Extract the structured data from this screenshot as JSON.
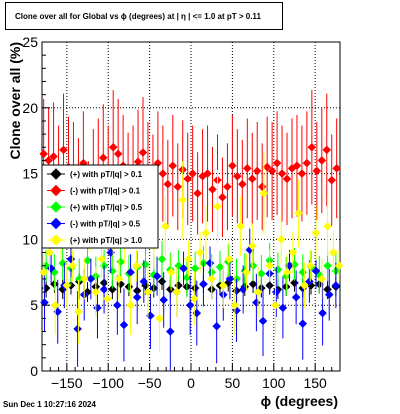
{
  "title": "Clone  over all for Global vs ϕ  (degrees) at |  η  | <= 1.0 at pT > 0.11",
  "timestamp": "Sun Dec  1 10:27:16 2024",
  "chart_data": {
    "type": "scatter",
    "xlabel": "ϕ  (degrees)",
    "ylabel": "Clone  over all (%)",
    "xlim": [
      -180,
      180
    ],
    "ylim": [
      0,
      25
    ],
    "xticks": [
      -150,
      -100,
      -50,
      0,
      50,
      100,
      150
    ],
    "yticks": [
      0,
      5,
      10,
      15,
      20,
      25
    ],
    "grid": true,
    "legend_position": "left-middle",
    "series": [
      {
        "name": "(+) with pT/|q| > 0.1",
        "color": "#000000",
        "marker": "diamond",
        "x": [
          -175,
          -165,
          -155,
          -145,
          -135,
          -125,
          -115,
          -105,
          -95,
          -85,
          -75,
          -65,
          -55,
          -45,
          -35,
          -25,
          -15,
          -5,
          5,
          15,
          25,
          35,
          45,
          55,
          65,
          75,
          85,
          95,
          105,
          115,
          125,
          135,
          145,
          155,
          165,
          175
        ],
        "y": [
          6.3,
          6.6,
          6.2,
          6.5,
          6.8,
          6.0,
          6.4,
          6.7,
          6.2,
          6.6,
          6.4,
          6.1,
          6.5,
          6.3,
          6.8,
          6.2,
          6.5,
          6.4,
          6.3,
          6.6,
          6.2,
          6.5,
          6.7,
          6.1,
          6.4,
          6.6,
          6.3,
          6.5,
          6.2,
          6.4,
          6.7,
          6.3,
          6.5,
          6.6,
          6.2,
          6.4
        ]
      },
      {
        "name": "(-) with pT/|q| > 0.1",
        "color": "#ff0000",
        "marker": "diamond",
        "x": [
          -178,
          -172,
          -166,
          -160,
          -154,
          -148,
          -142,
          -136,
          -130,
          -124,
          -118,
          -112,
          -106,
          -100,
          -94,
          -88,
          -82,
          -76,
          -70,
          -64,
          -58,
          -52,
          -46,
          -40,
          -34,
          -28,
          -22,
          -16,
          -10,
          -4,
          2,
          8,
          14,
          20,
          26,
          32,
          38,
          44,
          50,
          56,
          62,
          68,
          74,
          80,
          86,
          92,
          98,
          104,
          110,
          116,
          122,
          128,
          134,
          140,
          146,
          152,
          158,
          164,
          170,
          176
        ],
        "y": [
          16.5,
          16.0,
          16.3,
          15.0,
          16.8,
          15.5,
          15.2,
          14.3,
          15.8,
          13.0,
          14.8,
          15.4,
          16.2,
          15.0,
          17.0,
          16.5,
          15.6,
          14.6,
          15.0,
          15.9,
          16.6,
          15.2,
          14.5,
          15.8,
          15.0,
          14.2,
          15.6,
          14.0,
          15.3,
          14.6,
          15.0,
          13.5,
          14.8,
          15.0,
          13.8,
          14.5,
          13.2,
          14.0,
          15.6,
          14.8,
          14.2,
          15.4,
          14.6,
          15.2,
          14.0,
          15.5,
          15.2,
          15.8,
          15.0,
          14.6,
          15.4,
          15.6,
          15.0,
          15.8,
          17.0,
          15.2,
          16.0,
          16.8,
          14.5,
          15.4
        ]
      },
      {
        "name": "(+) with pT/|q| > 0.5",
        "color": "#00ff00",
        "marker": "diamond",
        "x": [
          -175,
          -165,
          -155,
          -145,
          -135,
          -125,
          -115,
          -105,
          -95,
          -85,
          -75,
          -65,
          -55,
          -45,
          -35,
          -25,
          -15,
          -5,
          5,
          15,
          25,
          35,
          45,
          55,
          65,
          75,
          85,
          95,
          105,
          115,
          125,
          135,
          145,
          155,
          165,
          175
        ],
        "y": [
          8.0,
          7.5,
          8.2,
          7.8,
          7.0,
          8.4,
          7.2,
          8.0,
          7.6,
          8.3,
          7.4,
          7.9,
          8.1,
          7.3,
          8.5,
          7.7,
          8.0,
          7.1,
          7.8,
          8.2,
          7.5,
          7.9,
          8.3,
          7.0,
          7.6,
          8.0,
          7.4,
          8.4,
          7.7,
          7.2,
          8.1,
          7.5,
          7.9,
          7.3,
          8.0,
          7.6
        ]
      },
      {
        "name": "(-) with pT/|q| > 0.5",
        "color": "#0000ff",
        "marker": "diamond",
        "x": [
          -177,
          -169,
          -161,
          -153,
          -145,
          -137,
          -129,
          -121,
          -113,
          -105,
          -97,
          -89,
          -81,
          -73,
          -65,
          -57,
          -49,
          -41,
          -33,
          -25,
          -17,
          -9,
          -1,
          7,
          15,
          23,
          31,
          39,
          47,
          55,
          63,
          71,
          79,
          87,
          95,
          103,
          111,
          119,
          127,
          135,
          143,
          151,
          159,
          167,
          175
        ],
        "y": [
          5.2,
          7.8,
          4.5,
          6.5,
          8.5,
          3.2,
          5.8,
          7.0,
          4.8,
          6.2,
          9.0,
          5.0,
          3.5,
          7.5,
          5.6,
          6.8,
          4.2,
          7.2,
          5.4,
          3.0,
          6.0,
          7.8,
          5.0,
          4.4,
          6.6,
          8.2,
          3.4,
          5.8,
          7.0,
          4.6,
          6.2,
          9.2,
          5.2,
          3.8,
          7.4,
          6.0,
          4.8,
          8.0,
          5.6,
          3.6,
          6.8,
          7.6,
          4.4,
          5.8,
          6.5
        ]
      },
      {
        "name": "(+) with pT/|q| > 1.0",
        "color": "#ffff00",
        "marker": "diamond",
        "x": [
          -178,
          -171,
          -164,
          -157,
          -150,
          -143,
          -136,
          -129,
          -122,
          -115,
          -108,
          -101,
          -94,
          -87,
          -80,
          -73,
          -66,
          -59,
          -52,
          -45,
          -38,
          -31,
          -24,
          -17,
          -10,
          -3,
          4,
          11,
          18,
          25,
          32,
          39,
          46,
          53,
          60,
          67,
          74,
          81,
          88,
          95,
          102,
          109,
          116,
          123,
          130,
          137,
          144,
          151,
          158,
          165,
          172,
          179
        ],
        "y": [
          7.5,
          9.0,
          5.0,
          10.5,
          6.5,
          8.0,
          4.5,
          7.0,
          11.5,
          6.0,
          8.5,
          5.5,
          9.5,
          7.0,
          10.0,
          5.0,
          8.0,
          12.0,
          6.0,
          9.5,
          4.0,
          11.0,
          7.5,
          6.0,
          13.0,
          8.5,
          5.5,
          9.0,
          10.5,
          7.0,
          12.5,
          6.5,
          8.5,
          5.0,
          11.0,
          7.5,
          9.5,
          6.0,
          13.5,
          8.0,
          5.0,
          10.0,
          7.5,
          9.0,
          12.0,
          6.5,
          8.0,
          10.5,
          7.0,
          11.0,
          9.0,
          8.0
        ]
      }
    ]
  }
}
